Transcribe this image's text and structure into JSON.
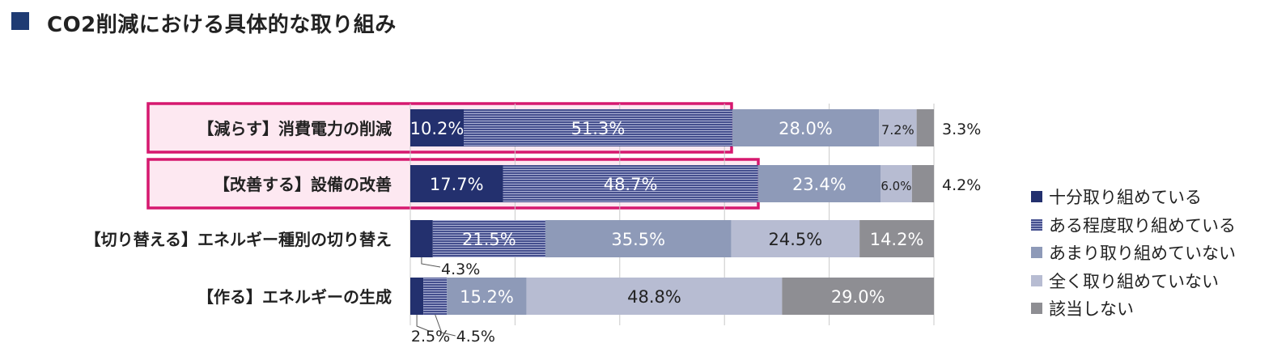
{
  "title": "CO2削減における具体的な取り組み",
  "colors": {
    "title_box": "#1f3b73",
    "highlight_border": "#d6186f",
    "highlight_fill": "#fde8f1",
    "grid": "#c9c9c9"
  },
  "chart_data": {
    "type": "bar",
    "orientation": "horizontal",
    "stacked": true,
    "unit": "%",
    "xlim": [
      0,
      100
    ],
    "grid": true,
    "legend_position": "right",
    "categories": [
      "【減らす】消費電力の削減",
      "【改善する】設備の改善",
      "【切り替える】エネルギー種別の切り替え",
      "【作る】エネルギーの生成"
    ],
    "highlighted_categories": [
      0,
      1
    ],
    "series": [
      {
        "name": "十分取り組めている",
        "color": "#23306e",
        "pattern": "solid",
        "values": [
          10.2,
          17.7,
          4.3,
          2.5
        ]
      },
      {
        "name": "ある程度取り組めている",
        "color": "#4a5494",
        "pattern": "stripes",
        "values": [
          51.3,
          48.7,
          21.5,
          4.5
        ]
      },
      {
        "name": "あまり取り組めていない",
        "color": "#8e9ab8",
        "pattern": "solid",
        "values": [
          28.0,
          23.4,
          35.5,
          15.2
        ]
      },
      {
        "name": "全く取り組めていない",
        "color": "#b7bcd2",
        "pattern": "solid",
        "values": [
          7.2,
          6.0,
          24.5,
          48.8
        ]
      },
      {
        "name": "該当しない",
        "color": "#8e8e93",
        "pattern": "solid",
        "values": [
          3.3,
          4.2,
          14.2,
          29.0
        ]
      }
    ],
    "data_labels": [
      [
        "10.2%",
        "51.3%",
        "28.0%",
        "7.2%",
        "3.3%"
      ],
      [
        "17.7%",
        "48.7%",
        "23.4%",
        "6.0%",
        "4.2%"
      ],
      [
        "4.3%",
        "21.5%",
        "35.5%",
        "24.5%",
        "14.2%"
      ],
      [
        "2.5%",
        "4.5%",
        "15.2%",
        "48.8%",
        "29.0%"
      ]
    ]
  }
}
